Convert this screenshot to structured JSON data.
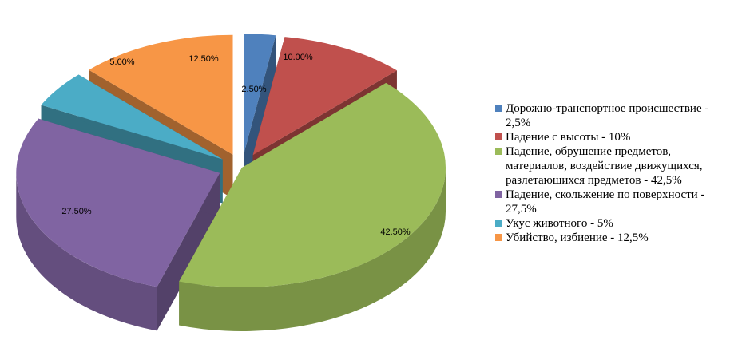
{
  "chart_data": {
    "type": "pie",
    "variant": "3d-exploded",
    "title": "",
    "series": [
      {
        "values": [
          2.5,
          10,
          42.5,
          27.5,
          5,
          12.5
        ]
      }
    ],
    "slices": [
      {
        "label": "Дорожно-транспортное происшествие - 2,5%",
        "value": 2.5,
        "data_label": "2.50%",
        "color": "#4f81bd"
      },
      {
        "label": "Падение с высоты - 10%",
        "value": 10,
        "data_label": "10.00%",
        "color": "#c0504d"
      },
      {
        "label": "Падение, обрушение предметов, материалов, воздействие движущихся, разлетающихся предметов - 42,5%",
        "value": 42.5,
        "data_label": "42.50%",
        "color": "#9bbb59"
      },
      {
        "label": "Падение, скольжение по поверхности - 27,5%",
        "value": 27.5,
        "data_label": "27.50%",
        "color": "#8064a2"
      },
      {
        "label": "Укус животного - 5%",
        "value": 5,
        "data_label": "5.00%",
        "color": "#4bacc6"
      },
      {
        "label": "Убийство, избиение - 12,5%",
        "value": 12.5,
        "data_label": "12.50%",
        "color": "#f79646"
      }
    ],
    "legend_position": "right"
  }
}
